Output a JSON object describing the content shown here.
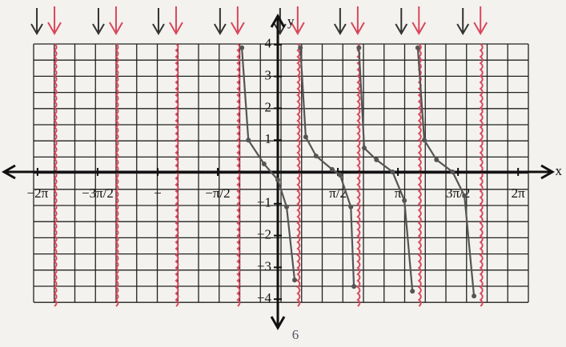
{
  "chart_data": {
    "type": "line",
    "x_label": "x",
    "y_label": "y",
    "annotation": "6",
    "xlim": [
      -7.16,
      7.18
    ],
    "ylim": [
      -4.9,
      4.9
    ],
    "xticks": [
      {
        "value": -6.2832,
        "label": "−2π"
      },
      {
        "value": -4.7124,
        "label": "−3π/2"
      },
      {
        "value": -3.1416,
        "label": "−"
      },
      {
        "value": -1.5708,
        "label": "−π/2"
      },
      {
        "value": 1.5708,
        "label": "π/2"
      },
      {
        "value": 3.1416,
        "label": "π"
      },
      {
        "value": 4.7124,
        "label": "3π/2"
      },
      {
        "value": 6.2832,
        "label": "2π"
      }
    ],
    "yticks": [
      4,
      3,
      2,
      1,
      {
        "value": -1,
        "label": "−1"
      },
      {
        "value": -2,
        "label": "−2"
      },
      {
        "value": -3,
        "label": "−3"
      },
      {
        "value": -4,
        "label": "−4"
      }
    ],
    "asymptotes": {
      "color": "#d9475c",
      "x": [
        -5.84,
        -4.23,
        -2.66,
        -1.05,
        0.52,
        2.09,
        3.69,
        5.3
      ]
    },
    "series": [
      {
        "color": "#555555",
        "x": [
          -0.94,
          -0.77,
          -0.36,
          0,
          0.23,
          0.44
        ],
        "values": [
          3.9,
          1.0,
          0.25,
          -0.25,
          -1.1,
          -3.4
        ]
      },
      {
        "color": "#555555",
        "x": [
          0.59,
          0.73,
          1.0,
          1.42,
          1.63,
          1.91,
          1.99
        ],
        "values": [
          3.9,
          1.1,
          0.5,
          0.08,
          -0.1,
          -1.1,
          -3.6
        ]
      },
      {
        "color": "#555555",
        "x": [
          2.12,
          2.26,
          2.58,
          3.0,
          3.31,
          3.52
        ],
        "values": [
          3.9,
          0.75,
          0.38,
          0,
          -0.9,
          -3.75
        ]
      },
      {
        "color": "#555555",
        "x": [
          3.66,
          3.83,
          4.15,
          4.57,
          4.88,
          5.13
        ],
        "values": [
          3.9,
          1.0,
          0.38,
          0,
          -0.75,
          -3.9
        ]
      }
    ]
  }
}
